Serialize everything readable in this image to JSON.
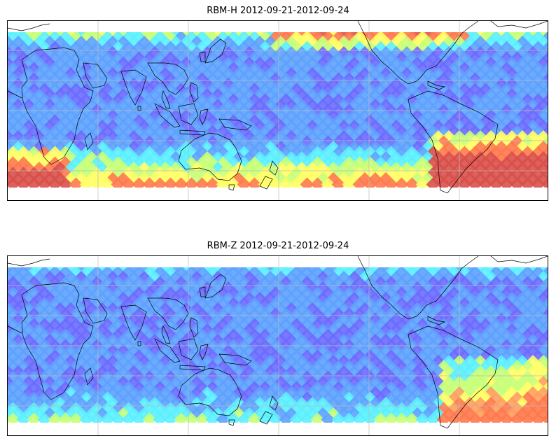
{
  "panels": [
    {
      "title": "RBM-H 2012-09-21-2012-09-24",
      "colors": {
        "low": "#6c6cff",
        "mid_low": "#5ea2ff",
        "mid": "#5cf0ff",
        "mid_high": "#c8ff78",
        "high": "#ffff66",
        "very_high": "#ff7a4e",
        "max": "#d9504a"
      }
    },
    {
      "title": "RBM-Z 2012-09-21-2012-09-24",
      "colors": {
        "low": "#6c6cff",
        "mid_low": "#5ea2ff",
        "mid": "#5cf0ff",
        "mid_high": "#c8ff78",
        "high": "#ffff66",
        "very_high": "#ff9f60",
        "max": "#ff7a4e"
      }
    }
  ],
  "map": {
    "projection": "equirectangular",
    "gridlines": true,
    "coastlines": true,
    "colormap": "jet (alpha 0.6)"
  }
}
